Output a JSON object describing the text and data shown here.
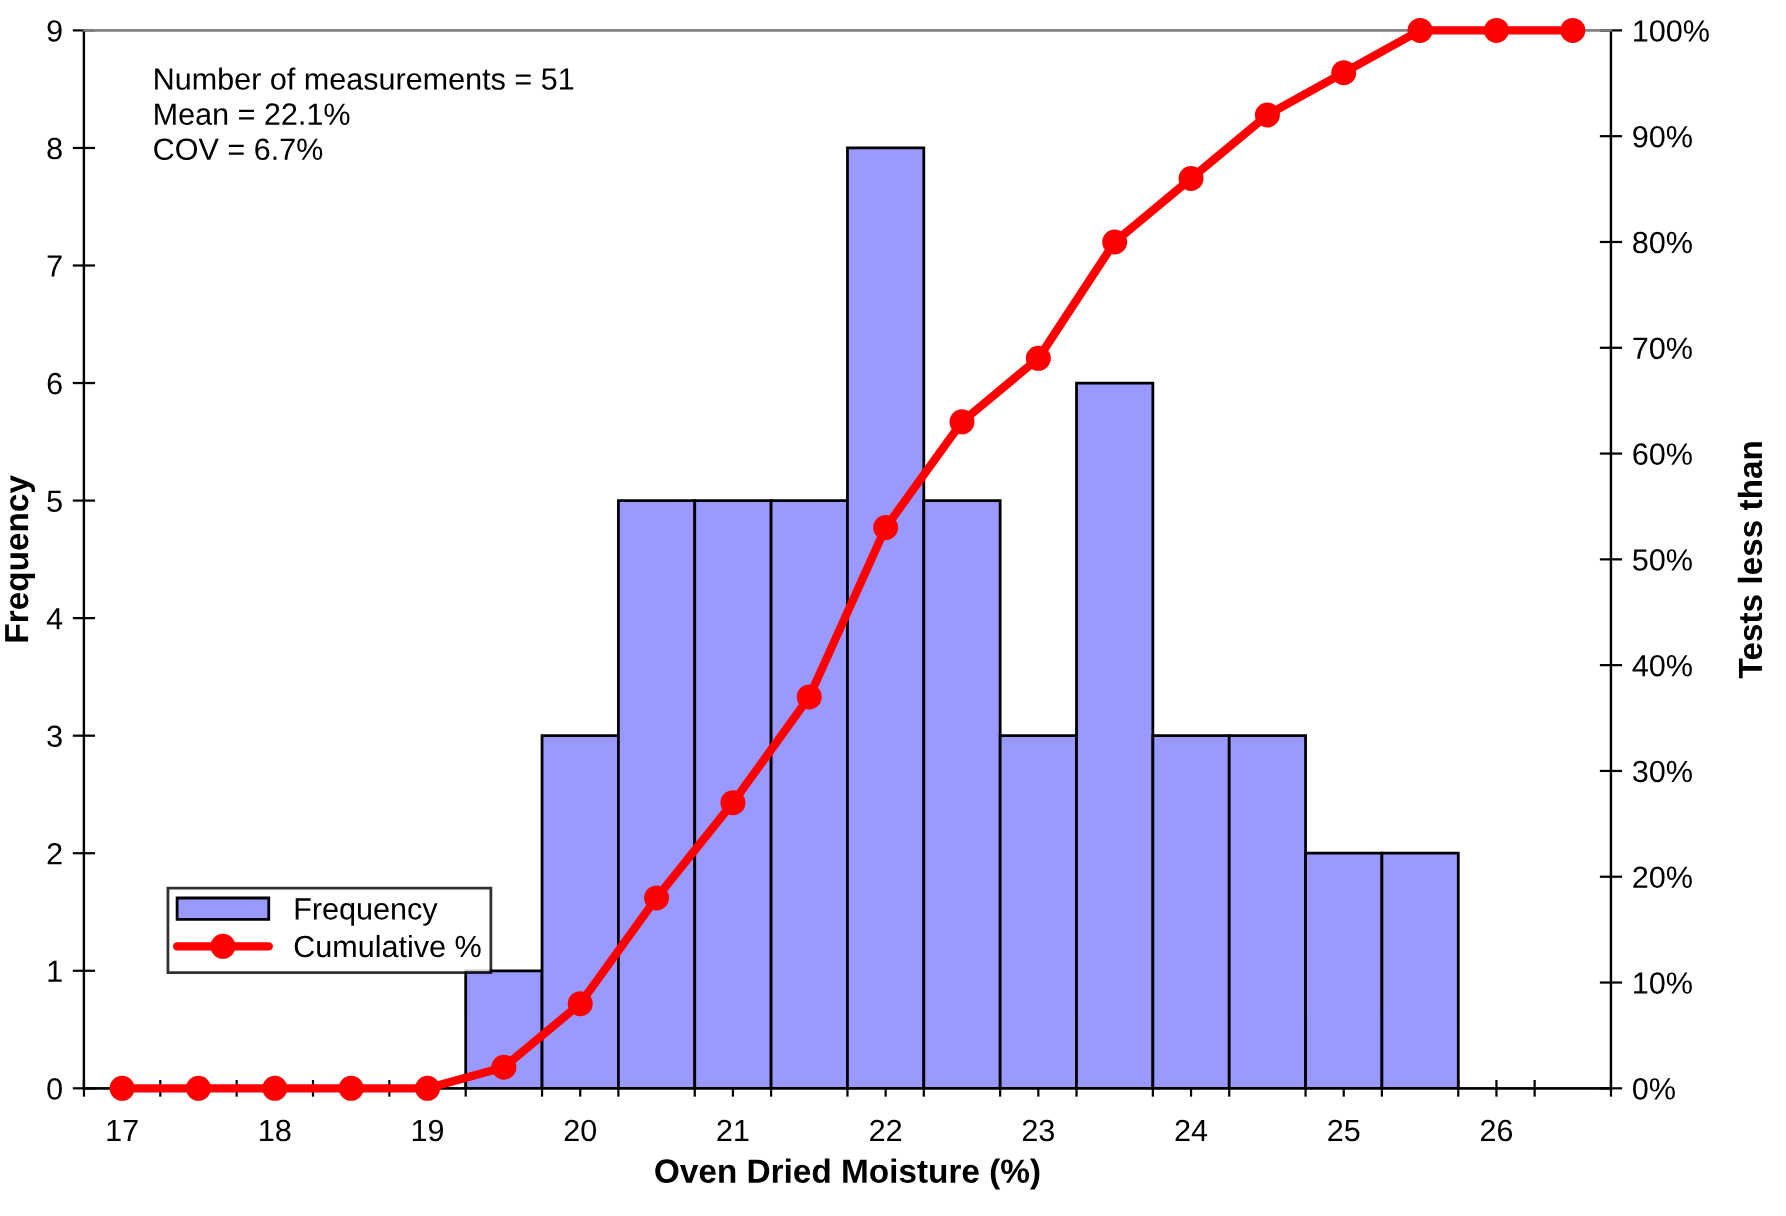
{
  "chart_data": {
    "type": "histogram",
    "xlabel": "Oven Dried Moisture (%)",
    "ylabel": "Frequency",
    "y2label": "Tests less than",
    "annotations": [
      "Number of measurements = 51\nMean = 22.1%\nCOV = 6.7%"
    ],
    "series": [
      {
        "name": "Frequency",
        "color": "#9999ff",
        "bins": [
          19.25,
          19.75,
          20.25,
          20.75,
          21.25,
          21.75,
          22.25,
          22.75,
          23.25,
          23.75,
          24.25,
          24.75,
          25.25,
          25.75
        ],
        "values": [
          1,
          3,
          5,
          5,
          5,
          8,
          5,
          3,
          6,
          3,
          3,
          2,
          2
        ]
      },
      {
        "name": "Cumulative %",
        "type": "line",
        "axis": "y2",
        "color": "#ff0000",
        "marker": "circle",
        "line_style": "solid",
        "x": [
          17,
          17.5,
          18,
          18.5,
          19,
          19.5,
          20,
          20.5,
          21,
          21.5,
          22,
          22.5,
          23,
          23.5,
          24,
          24.5,
          25,
          25.5,
          26,
          26.5
        ],
        "values": [
          0,
          0,
          0,
          0,
          0,
          2,
          8,
          18,
          27,
          37,
          53,
          63,
          69,
          80,
          86,
          92,
          96,
          100,
          100,
          100
        ]
      }
    ],
    "xlim": [
      16.75,
      26.75
    ],
    "xticks": [
      {
        "value": 16.75,
        "label": null
      },
      17,
      {
        "value": 17.25,
        "label": null
      },
      {
        "value": 17.75,
        "label": null
      },
      18,
      {
        "value": 18.25,
        "label": null
      },
      {
        "value": 18.75,
        "label": null
      },
      19,
      {
        "value": 19.25,
        "label": null
      },
      {
        "value": 19.75,
        "label": null
      },
      20,
      {
        "value": 20.25,
        "label": null
      },
      {
        "value": 20.75,
        "label": null
      },
      21,
      {
        "value": 21.25,
        "label": null
      },
      {
        "value": 21.75,
        "label": null
      },
      22,
      {
        "value": 22.25,
        "label": null
      },
      {
        "value": 22.75,
        "label": null
      },
      23,
      {
        "value": 23.25,
        "label": null
      },
      {
        "value": 23.75,
        "label": null
      },
      24,
      {
        "value": 24.25,
        "label": null
      },
      {
        "value": 24.75,
        "label": null
      },
      25,
      {
        "value": 25.25,
        "label": null
      },
      {
        "value": 25.75,
        "label": null
      },
      26,
      {
        "value": 26.25,
        "label": null
      },
      {
        "value": 26.75,
        "label": null
      }
    ],
    "ylim": [
      0,
      9
    ],
    "yticks": [
      0,
      1,
      2,
      3,
      4,
      5,
      6,
      7,
      8,
      9
    ],
    "y2lim": [
      0,
      100
    ],
    "y2ticks": [
      {
        "value": 0,
        "label": "0%"
      },
      {
        "value": 10,
        "label": "10%"
      },
      {
        "value": 20,
        "label": "20%"
      },
      {
        "value": 30,
        "label": "30%"
      },
      {
        "value": 40,
        "label": "40%"
      },
      {
        "value": 50,
        "label": "50%"
      },
      {
        "value": 60,
        "label": "60%"
      },
      {
        "value": 70,
        "label": "70%"
      },
      {
        "value": 80,
        "label": "80%"
      },
      {
        "value": 90,
        "label": "90%"
      },
      {
        "value": 100,
        "label": "100%"
      }
    ],
    "grid": false,
    "legend": "bottom left"
  }
}
